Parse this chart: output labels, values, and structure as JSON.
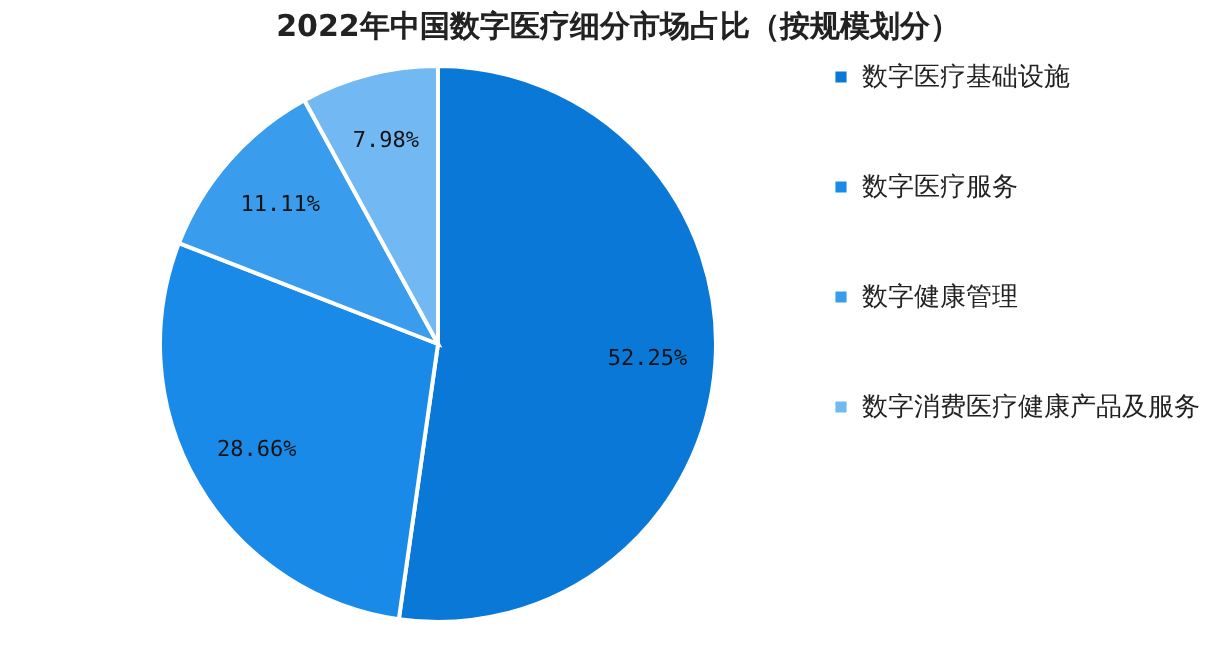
{
  "chart_data": {
    "type": "pie",
    "title": "2022年中国数字医疗细分市场占比（按规模划分）",
    "categories": [
      "数字医疗基础设施",
      "数字医疗服务",
      "数字健康管理",
      "数字消费医疗健康产品及服务"
    ],
    "values": [
      52.25,
      28.66,
      11.11,
      7.98
    ],
    "value_labels": [
      "52.25%",
      "28.66%",
      "11.11%",
      "7.98%"
    ],
    "colors": [
      "#0a78d6",
      "#1a8ae8",
      "#3a9cec",
      "#72b8f2"
    ],
    "legend": "right"
  }
}
